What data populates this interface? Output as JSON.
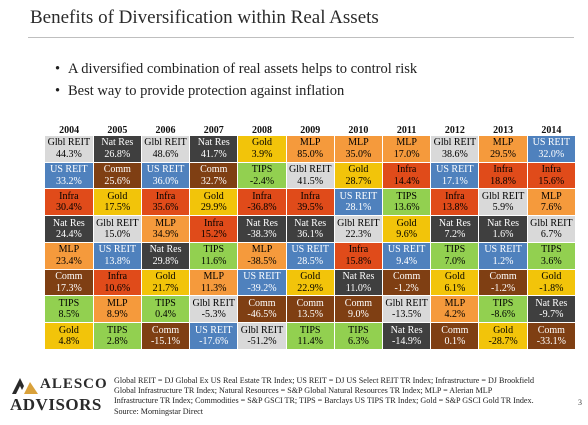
{
  "header": {
    "title": "Benefits of Diversification within Real Assets"
  },
  "bullets": [
    "A diversified combination of real assets helps to control risk",
    "Best way to provide protection against inflation"
  ],
  "colors": {
    "Glbl REIT": "#d9d9d9",
    "Nat Res": "#3f3f3f",
    "US REIT": "#4f81bd",
    "Comm": "#7f3f13",
    "Infra": "#e04b1a",
    "Gold": "#f2c40a",
    "MLP": "#f59a3c",
    "TIPS": "#92d050"
  },
  "text_colors": {
    "Glbl REIT": "#000000",
    "Nat Res": "#ffffff",
    "US REIT": "#ffffff",
    "Comm": "#ffffff",
    "Infra": "#000000",
    "Gold": "#000000",
    "MLP": "#000000",
    "TIPS": "#000000"
  },
  "chart_data": {
    "type": "table",
    "title": "",
    "years": [
      "2004",
      "2005",
      "2006",
      "2007",
      "2008",
      "2009",
      "2010",
      "2011",
      "2012",
      "2013",
      "2014"
    ],
    "columns": [
      [
        [
          "Glbl REIT",
          "44.3%"
        ],
        [
          "US REIT",
          "33.2%"
        ],
        [
          "Infra",
          "30.4%"
        ],
        [
          "Nat Res",
          "24.4%"
        ],
        [
          "MLP",
          "23.4%"
        ],
        [
          "Comm",
          "17.3%"
        ],
        [
          "TIPS",
          "8.5%"
        ],
        [
          "Gold",
          "4.8%"
        ]
      ],
      [
        [
          "Nat Res",
          "26.8%"
        ],
        [
          "Comm",
          "25.6%"
        ],
        [
          "Gold",
          "17.5%"
        ],
        [
          "Glbl REIT",
          "15.0%"
        ],
        [
          "US REIT",
          "13.8%"
        ],
        [
          "Infra",
          "10.6%"
        ],
        [
          "MLP",
          "8.9%"
        ],
        [
          "TIPS",
          "2.8%"
        ]
      ],
      [
        [
          "Glbl REIT",
          "48.6%"
        ],
        [
          "US REIT",
          "36.0%"
        ],
        [
          "Infra",
          "35.6%"
        ],
        [
          "MLP",
          "34.9%"
        ],
        [
          "Nat Res",
          "29.8%"
        ],
        [
          "Gold",
          "21.7%"
        ],
        [
          "TIPS",
          "0.4%"
        ],
        [
          "Comm",
          "-15.1%"
        ]
      ],
      [
        [
          "Nat Res",
          "41.7%"
        ],
        [
          "Comm",
          "32.7%"
        ],
        [
          "Gold",
          "29.9%"
        ],
        [
          "Infra",
          "15.2%"
        ],
        [
          "TIPS",
          "11.6%"
        ],
        [
          "MLP",
          "11.3%"
        ],
        [
          "Glbl REIT",
          "-5.3%"
        ],
        [
          "US REIT",
          "-17.6%"
        ]
      ],
      [
        [
          "Gold",
          "3.9%"
        ],
        [
          "TIPS",
          "-2.4%"
        ],
        [
          "Infra",
          "-36.8%"
        ],
        [
          "Nat Res",
          "-38.3%"
        ],
        [
          "MLP",
          "-38.5%"
        ],
        [
          "US REIT",
          "-39.2%"
        ],
        [
          "Comm",
          "-46.5%"
        ],
        [
          "Glbl REIT",
          "-51.2%"
        ]
      ],
      [
        [
          "MLP",
          "85.0%"
        ],
        [
          "Glbl REIT",
          "41.5%"
        ],
        [
          "Infra",
          "39.5%"
        ],
        [
          "Nat Res",
          "36.1%"
        ],
        [
          "US REIT",
          "28.5%"
        ],
        [
          "Gold",
          "22.9%"
        ],
        [
          "Comm",
          "13.5%"
        ],
        [
          "TIPS",
          "11.4%"
        ]
      ],
      [
        [
          "MLP",
          "35.0%"
        ],
        [
          "Gold",
          "28.7%"
        ],
        [
          "US REIT",
          "28.1%"
        ],
        [
          "Glbl REIT",
          "22.3%"
        ],
        [
          "Infra",
          "15.8%"
        ],
        [
          "Nat Res",
          "11.0%"
        ],
        [
          "Comm",
          "9.0%"
        ],
        [
          "TIPS",
          "6.3%"
        ]
      ],
      [
        [
          "MLP",
          "17.0%"
        ],
        [
          "Infra",
          "14.4%"
        ],
        [
          "TIPS",
          "13.6%"
        ],
        [
          "Gold",
          "9.6%"
        ],
        [
          "US REIT",
          "9.4%"
        ],
        [
          "Comm",
          "-1.2%"
        ],
        [
          "Glbl REIT",
          "-13.5%"
        ],
        [
          "Nat Res",
          "-14.9%"
        ]
      ],
      [
        [
          "Glbl REIT",
          "38.6%"
        ],
        [
          "US REIT",
          "17.1%"
        ],
        [
          "Infra",
          "13.8%"
        ],
        [
          "Nat Res",
          "7.2%"
        ],
        [
          "TIPS",
          "7.0%"
        ],
        [
          "Gold",
          "6.1%"
        ],
        [
          "MLP",
          "4.2%"
        ],
        [
          "Comm",
          "0.1%"
        ]
      ],
      [
        [
          "MLP",
          "29.5%"
        ],
        [
          "Infra",
          "18.8%"
        ],
        [
          "Glbl REIT",
          "5.9%"
        ],
        [
          "Nat Res",
          "1.6%"
        ],
        [
          "US REIT",
          "1.2%"
        ],
        [
          "Comm",
          "-1.2%"
        ],
        [
          "TIPS",
          "-8.6%"
        ],
        [
          "Gold",
          "-28.7%"
        ]
      ],
      [
        [
          "US REIT",
          "32.0%"
        ],
        [
          "Infra",
          "15.6%"
        ],
        [
          "MLP",
          "7.6%"
        ],
        [
          "Glbl REIT",
          "6.7%"
        ],
        [
          "TIPS",
          "3.6%"
        ],
        [
          "Gold",
          "-1.8%"
        ],
        [
          "Nat Res",
          "-9.7%"
        ],
        [
          "Comm",
          "-33.1%"
        ]
      ]
    ]
  },
  "logo": {
    "line1": "ALESCO",
    "line2": "ADVISORS"
  },
  "footnote": [
    "Global REIT = DJ Global Ex US Real Estate TR Index; US REIT = DJ US Select REIT TR Index; Infrastructure = DJ Brookfield",
    "Global Infrastructure TR Index; Natural Resources = S&P Global Natural Resources TR Index; MLP = Alerian MLP",
    "Infrastructure TR Index; Commodities = S&P GSCI TR; TIPS = Barclays US TIPS TR Index; Gold = S&P GSCI Gold TR Index.",
    "Source: Morningstar Direct"
  ],
  "page_number": "3"
}
